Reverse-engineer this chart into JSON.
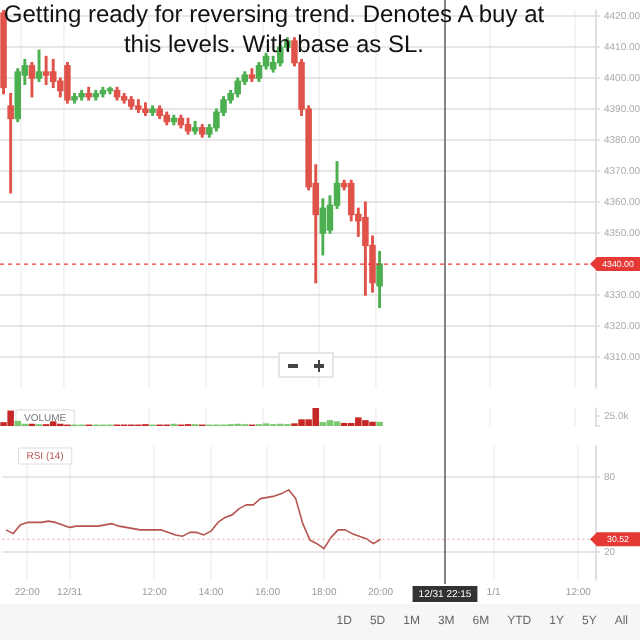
{
  "chart_data": [
    {
      "type": "candlestick",
      "categories": [
        null,
        null,
        null,
        "22:00",
        null,
        null,
        null,
        null,
        null,
        "12/31",
        null,
        null,
        null,
        null,
        null,
        null,
        null,
        null,
        null,
        null,
        null,
        "12:00",
        null,
        null,
        null,
        null,
        null,
        null,
        null,
        "14:00",
        null,
        null,
        null,
        null,
        null,
        null,
        null,
        "16:00",
        null,
        null,
        null,
        null,
        null,
        null,
        null,
        "18:00",
        null,
        null,
        null,
        null,
        null,
        null,
        null,
        "20:00",
        null,
        null,
        null,
        null,
        null,
        null,
        null,
        null,
        "12/31 22:15",
        null,
        null,
        null,
        null,
        null,
        null,
        "1/1",
        null,
        null,
        null,
        null,
        null,
        null,
        null,
        null,
        null,
        null,
        null,
        "12:00",
        null,
        null
      ],
      "ohlc": [
        [
          4421,
          4422,
          4395,
          4397
        ],
        [
          4391,
          4395,
          4363,
          4387
        ],
        [
          4387,
          4403,
          4386,
          4402
        ],
        [
          4401,
          4406,
          4398,
          4404
        ],
        [
          4404,
          4405,
          4394,
          4400
        ],
        [
          4400,
          4409,
          4399,
          4402
        ],
        [
          4402,
          4407,
          4398,
          4401
        ],
        [
          4402,
          4406,
          4397,
          4399
        ],
        [
          4399,
          4400,
          4394,
          4396
        ],
        [
          4404,
          4405,
          4392,
          4393
        ],
        [
          4393,
          4395,
          4392,
          4394
        ],
        [
          4394,
          4396,
          4393,
          4395
        ],
        [
          4395,
          4397,
          4393,
          4394
        ],
        [
          4394,
          4396,
          4393,
          4395
        ],
        [
          4395,
          4397,
          4394,
          4396
        ],
        [
          4396,
          4397,
          4395,
          4396
        ],
        [
          4396,
          4397,
          4393,
          4394
        ],
        [
          4394,
          4395,
          4392,
          4393
        ],
        [
          4393,
          4394,
          4390,
          4391
        ],
        [
          4391,
          4393,
          4389,
          4390
        ],
        [
          4390,
          4392,
          4388,
          4389
        ],
        [
          4389,
          4391,
          4388,
          4390
        ],
        [
          4390,
          4391,
          4387,
          4388
        ],
        [
          4388,
          4389,
          4385,
          4386
        ],
        [
          4386,
          4388,
          4385,
          4387
        ],
        [
          4387,
          4388,
          4384,
          4385
        ],
        [
          4385,
          4387,
          4382,
          4383
        ],
        [
          4383,
          4386,
          4382,
          4384
        ],
        [
          4384,
          4385,
          4381,
          4382
        ],
        [
          4382,
          4385,
          4381,
          4384
        ],
        [
          4384,
          4390,
          4383,
          4389
        ],
        [
          4389,
          4394,
          4388,
          4393
        ],
        [
          4393,
          4396,
          4392,
          4395
        ],
        [
          4395,
          4400,
          4394,
          4399
        ],
        [
          4399,
          4402,
          4398,
          4401
        ],
        [
          4401,
          4403,
          4399,
          4400
        ],
        [
          4400,
          4405,
          4399,
          4404
        ],
        [
          4404,
          4408,
          4403,
          4407
        ],
        [
          4403,
          4407,
          4402,
          4405
        ],
        [
          4405,
          4411,
          4404,
          4410
        ],
        [
          4410,
          4413,
          4409,
          4412
        ],
        [
          4412,
          4413,
          4404,
          4405
        ],
        [
          4405,
          4406,
          4388,
          4390
        ],
        [
          4390,
          4391,
          4364,
          4365
        ],
        [
          4366,
          4372,
          4334,
          4356
        ],
        [
          4350,
          4361,
          4343,
          4358
        ],
        [
          4351,
          4362,
          4350,
          4359
        ],
        [
          4359,
          4373,
          4358,
          4366
        ],
        [
          4366,
          4367,
          4364,
          4365
        ],
        [
          4366,
          4367,
          4354,
          4356
        ],
        [
          4356,
          4358,
          4349,
          4354
        ],
        [
          4355,
          4360,
          4330,
          4346
        ],
        [
          4346,
          4349,
          4331,
          4334
        ],
        [
          4333,
          4344,
          4326,
          4340
        ],
        null,
        null,
        null,
        null,
        null,
        null,
        null,
        null,
        null,
        null,
        null,
        null,
        null,
        null,
        null,
        null,
        null,
        null,
        null,
        null,
        null,
        null,
        null,
        null,
        null,
        null,
        null,
        null,
        null,
        null
      ],
      "colors": [
        "#e0534a",
        "#e0534a",
        "#4caf50",
        "#4caf50",
        "#e0534a",
        "#4caf50",
        "#e0534a",
        "#e0534a",
        "#e0534a",
        "#e0534a",
        "#4caf50",
        "#4caf50",
        "#e0534a",
        "#4caf50",
        "#4caf50",
        "#4caf50",
        "#e0534a",
        "#e0534a",
        "#e0534a",
        "#e0534a",
        "#e0534a",
        "#4caf50",
        "#e0534a",
        "#e0534a",
        "#4caf50",
        "#e0534a",
        "#e0534a",
        "#4caf50",
        "#e0534a",
        "#4caf50",
        "#4caf50",
        "#4caf50",
        "#4caf50",
        "#4caf50",
        "#4caf50",
        "#e0534a",
        "#4caf50",
        "#4caf50",
        "#4caf50",
        "#4caf50",
        "#4caf50",
        "#e0534a",
        "#e0534a",
        "#e0534a",
        "#e0534a",
        "#4caf50",
        "#4caf50",
        "#4caf50",
        "#e0534a",
        "#e0534a",
        "#e0534a",
        "#e0534a",
        "#e0534a",
        "#4caf50",
        null,
        null,
        null,
        null,
        null,
        null,
        null,
        null,
        null,
        null,
        null,
        null,
        null,
        null,
        null,
        null,
        null,
        null,
        null,
        null,
        null,
        null,
        null,
        null,
        null,
        null,
        null,
        null,
        null,
        null
      ],
      "ylim": [
        4300,
        4422
      ],
      "yticks": [
        {
          "value": 4310,
          "label": "4310.00"
        },
        {
          "value": 4320,
          "label": "4320.00"
        },
        {
          "value": 4330,
          "label": "4330.00"
        },
        {
          "value": 4350,
          "label": "4350.00"
        },
        {
          "value": 4360,
          "label": "4360.00"
        },
        {
          "value": 4370,
          "label": "4370.00"
        },
        {
          "value": 4380,
          "label": "4380.00"
        },
        {
          "value": 4390,
          "label": "4390.00"
        },
        {
          "value": 4400,
          "label": "4400.00"
        },
        {
          "value": 4410,
          "label": "4410.00"
        },
        {
          "value": 4420,
          "label": "4420.00"
        }
      ],
      "ref_lines": [
        {
          "axis": "y",
          "value": 4340,
          "label": "4340.00",
          "color": "#e53935",
          "line_style": "dashed"
        },
        {
          "axis": "x",
          "value": "12/31 22:15",
          "color": "#666666"
        }
      ],
      "annotations": [
        "Getting ready for reversing trend. Denotes A buy at this levels. With base as SL."
      ],
      "grid": true,
      "tick_labels": "y"
    },
    {
      "type": "bar",
      "categories": [
        null,
        null,
        null,
        "22:00",
        null,
        null,
        null,
        null,
        null,
        "12/31",
        null,
        null,
        null,
        null,
        null,
        null,
        null,
        null,
        null,
        null,
        null,
        "12:00",
        null,
        null,
        null,
        null,
        null,
        null,
        null,
        "14:00",
        null,
        null,
        null,
        null,
        null,
        null,
        null,
        "16:00",
        null,
        null,
        null,
        null,
        null,
        null,
        null,
        "18:00",
        null,
        null,
        null,
        null,
        null,
        null,
        null,
        "20:00",
        null,
        null,
        null,
        null,
        null,
        null,
        null,
        null,
        "12/31 22:15",
        null,
        null,
        null,
        null,
        null,
        null,
        "1/1",
        null,
        null,
        null,
        null,
        null,
        null,
        null,
        null,
        null,
        null,
        null,
        "12:00",
        null,
        null
      ],
      "series": [
        {
          "name": "VOLUME",
          "values": [
            8000,
            37000,
            11000,
            4000,
            4000,
            3000,
            3000,
            10000,
            4000,
            2000,
            2000,
            2000,
            2000,
            2000,
            2000,
            2000,
            2000,
            2000,
            2000,
            2000,
            3000,
            2000,
            2000,
            2000,
            4000,
            2000,
            3000,
            3000,
            2000,
            2000,
            2000,
            2000,
            3000,
            4000,
            3000,
            2000,
            3000,
            5000,
            3000,
            4000,
            3000,
            5000,
            15000,
            15000,
            44000,
            8000,
            13000,
            10000,
            6000,
            6000,
            20000,
            13000,
            9000,
            9000,
            null,
            null,
            null,
            null,
            null,
            null,
            null,
            null,
            null,
            null,
            null,
            null,
            null,
            null,
            null,
            null,
            null,
            null,
            null,
            null,
            null,
            null,
            null,
            null,
            null,
            null,
            null,
            null,
            null,
            null
          ],
          "colors": [
            "#c62828",
            "#c62828",
            "#7bc96f",
            "#7bc96f",
            "#c62828",
            "#7bc96f",
            "#c62828",
            "#c62828",
            "#c62828",
            "#c62828",
            "#7bc96f",
            "#7bc96f",
            "#c62828",
            "#7bc96f",
            "#7bc96f",
            "#7bc96f",
            "#c62828",
            "#c62828",
            "#c62828",
            "#c62828",
            "#c62828",
            "#7bc96f",
            "#c62828",
            "#c62828",
            "#7bc96f",
            "#c62828",
            "#c62828",
            "#7bc96f",
            "#c62828",
            "#7bc96f",
            "#7bc96f",
            "#7bc96f",
            "#7bc96f",
            "#7bc96f",
            "#7bc96f",
            "#c62828",
            "#7bc96f",
            "#7bc96f",
            "#7bc96f",
            "#7bc96f",
            "#7bc96f",
            "#c62828",
            "#c62828",
            "#c62828",
            "#c62828",
            "#7bc96f",
            "#7bc96f",
            "#7bc96f",
            "#c62828",
            "#c62828",
            "#c62828",
            "#c62828",
            "#c62828",
            "#7bc96f",
            null,
            null,
            null,
            null,
            null,
            null,
            null,
            null,
            null,
            null,
            null,
            null,
            null,
            null,
            null,
            null,
            null,
            null,
            null,
            null,
            null,
            null,
            null,
            null,
            null,
            null,
            null,
            null,
            null,
            null
          ]
        }
      ],
      "ylim": [
        0,
        45000
      ],
      "yticks": [
        {
          "value": 0,
          "label": null
        },
        {
          "value": 25000,
          "label": "25.0k"
        }
      ],
      "ref_lines": [
        {
          "axis": "x",
          "value": "12/31 22:15",
          "color": "#666666"
        }
      ],
      "grid": "x",
      "tick_labels": "y"
    },
    {
      "type": "line",
      "categories": [
        null,
        null,
        null,
        "22:00",
        null,
        null,
        null,
        null,
        null,
        "12/31",
        null,
        null,
        null,
        null,
        null,
        null,
        null,
        null,
        null,
        null,
        null,
        "12:00",
        null,
        null,
        null,
        null,
        null,
        null,
        null,
        "14:00",
        null,
        null,
        null,
        null,
        null,
        null,
        null,
        "16:00",
        null,
        null,
        null,
        null,
        null,
        null,
        null,
        "18:00",
        null,
        null,
        null,
        null,
        null,
        null,
        null,
        "20:00",
        null,
        null,
        null,
        null,
        null,
        null,
        null,
        null,
        "12/31 22:15",
        null,
        null,
        null,
        null,
        null,
        null,
        "1/1",
        null,
        null,
        null,
        null,
        null,
        null,
        null,
        null,
        null,
        null,
        null,
        "12:00",
        null,
        null
      ],
      "series": [
        {
          "name": "RSI (14)",
          "color": "#b5534f",
          "values": [
            38,
            35,
            42,
            44,
            44,
            44,
            45,
            44,
            42,
            40,
            41,
            41,
            41,
            41,
            42,
            43,
            41,
            40,
            39,
            38,
            38,
            38,
            38,
            36,
            34,
            33,
            36,
            36,
            34,
            37,
            44,
            48,
            50,
            55,
            58,
            58,
            63,
            64,
            65,
            67,
            70,
            63,
            43,
            30,
            27,
            23,
            32,
            38,
            38,
            35,
            33,
            31,
            27,
            30.52,
            null,
            null,
            null,
            null,
            null,
            null,
            null,
            null,
            null,
            null,
            null,
            null,
            null,
            null,
            null,
            null,
            null,
            null,
            null,
            null,
            null,
            null,
            null,
            null,
            null,
            null,
            null,
            null,
            null,
            null
          ]
        }
      ],
      "ylim": [
        -2,
        105
      ],
      "yticks": [
        20,
        80
      ],
      "ref_lines": [
        {
          "axis": "y",
          "value": 30.52,
          "label": "30.52",
          "color": "#f0a09c",
          "line_style": "dotted"
        },
        {
          "axis": "x",
          "value": "12/31 22:15",
          "color": "#666666"
        }
      ],
      "annotations": [
        "1D",
        "5D",
        "1M",
        "3M",
        "6M",
        "YTD",
        "1Y",
        "5Y",
        "All"
      ],
      "grid": true,
      "marker": "none"
    }
  ]
}
